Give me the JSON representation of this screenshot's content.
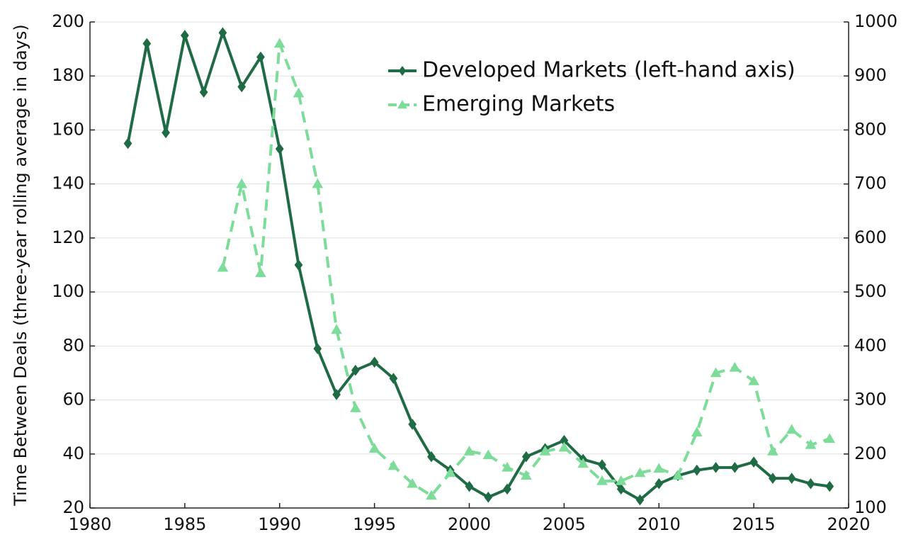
{
  "chart_data": {
    "type": "line",
    "x": [
      1982,
      1983,
      1984,
      1985,
      1986,
      1987,
      1988,
      1989,
      1990,
      1991,
      1992,
      1993,
      1994,
      1995,
      1996,
      1997,
      1998,
      1999,
      2000,
      2001,
      2002,
      2003,
      2004,
      2005,
      2006,
      2007,
      2008,
      2009,
      2010,
      2011,
      2012,
      2013,
      2014,
      2015,
      2016,
      2017,
      2018,
      2019
    ],
    "series": [
      {
        "name": "Developed Markets (left-hand axis)",
        "color": "#1f6b45",
        "marker": "diamond",
        "linestyle": "solid",
        "values": [
          155,
          192,
          159,
          195,
          174,
          196,
          176,
          187,
          153,
          110,
          79,
          62,
          71,
          74,
          68,
          51,
          39,
          34,
          28,
          24,
          27,
          39,
          42,
          45,
          38,
          36,
          27,
          23,
          29,
          32,
          34,
          35,
          35,
          37,
          31,
          31,
          29,
          28
        ]
      },
      {
        "name": "Emerging Markets",
        "color": "#7ddc9a",
        "marker": "triangle",
        "linestyle": "dashed",
        "axis": "y2",
        "values": [
          null,
          null,
          null,
          null,
          null,
          545,
          700,
          535,
          960,
          868,
          700,
          430,
          285,
          210,
          178,
          145,
          123,
          165,
          205,
          198,
          175,
          160,
          205,
          212,
          182,
          150,
          150,
          165,
          173,
          160,
          240,
          350,
          360,
          335,
          205,
          245,
          217,
          228
        ]
      }
    ],
    "ylabel": "Time Between Deals (three-year rolling average in days)",
    "xlim": [
      1980,
      2020
    ],
    "xticks": [
      1980,
      1985,
      1990,
      1995,
      2000,
      2005,
      2010,
      2015,
      2020
    ],
    "ylim": [
      20,
      200
    ],
    "yticks": [
      20,
      40,
      60,
      80,
      100,
      120,
      140,
      160,
      180,
      200
    ],
    "y2lim": [
      100,
      1000
    ],
    "y2ticks": [
      100,
      200,
      300,
      400,
      500,
      600,
      700,
      800,
      900,
      1000
    ],
    "grid": true,
    "legend": "upper right"
  }
}
